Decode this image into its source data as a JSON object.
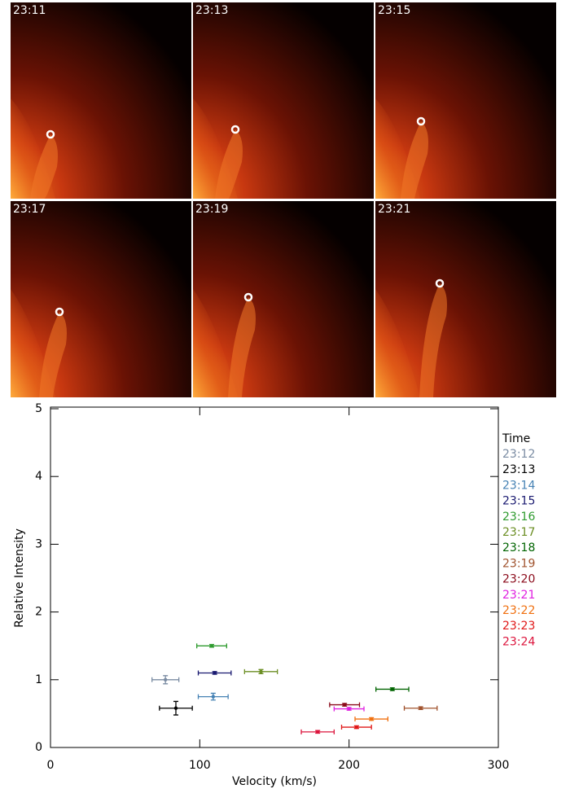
{
  "panels": [
    {
      "label": "23:11"
    },
    {
      "label": "23:13"
    },
    {
      "label": "23:15"
    },
    {
      "label": "23:17"
    },
    {
      "label": "23:19"
    },
    {
      "label": "23:21"
    }
  ],
  "chart_data": {
    "type": "scatter",
    "xlabel": "Velocity (km/s)",
    "ylabel": "Relative Intensity",
    "xlim": [
      0,
      300
    ],
    "ylim": [
      0,
      5
    ],
    "xticks": [
      0,
      100,
      200,
      300
    ],
    "yticks": [
      0,
      1,
      2,
      3,
      4,
      5
    ],
    "legend_title": "Time",
    "legend": "right",
    "series": [
      {
        "name": "23:12",
        "color": "#7b8ca3",
        "x": [
          77
        ],
        "xerr": [
          9
        ],
        "values": [
          1.0
        ],
        "yerr": [
          0.06
        ]
      },
      {
        "name": "23:13",
        "color": "#000000",
        "x": [
          84
        ],
        "xerr": [
          11
        ],
        "values": [
          0.58
        ],
        "yerr": [
          0.1
        ]
      },
      {
        "name": "23:14",
        "color": "#4682b4",
        "x": [
          109
        ],
        "xerr": [
          10
        ],
        "values": [
          0.75
        ],
        "yerr": [
          0.05
        ]
      },
      {
        "name": "23:15",
        "color": "#191970",
        "x": [
          110
        ],
        "xerr": [
          11
        ],
        "values": [
          1.1
        ],
        "yerr": [
          0.02
        ]
      },
      {
        "name": "23:16",
        "color": "#2e9b2e",
        "x": [
          108
        ],
        "xerr": [
          10
        ],
        "values": [
          1.5
        ],
        "yerr": [
          0.02
        ]
      },
      {
        "name": "23:17",
        "color": "#6b8e23",
        "x": [
          141
        ],
        "xerr": [
          11
        ],
        "values": [
          1.12
        ],
        "yerr": [
          0.03
        ]
      },
      {
        "name": "23:18",
        "color": "#006400",
        "x": [
          229
        ],
        "xerr": [
          11
        ],
        "values": [
          0.86
        ],
        "yerr": [
          0.02
        ]
      },
      {
        "name": "23:19",
        "color": "#a0522d",
        "x": [
          248
        ],
        "xerr": [
          11
        ],
        "values": [
          0.58
        ],
        "yerr": [
          0.02
        ]
      },
      {
        "name": "23:20",
        "color": "#8b0a1a",
        "x": [
          197
        ],
        "xerr": [
          10
        ],
        "values": [
          0.63
        ],
        "yerr": [
          0.02
        ]
      },
      {
        "name": "23:21",
        "color": "#e020e0",
        "x": [
          200
        ],
        "xerr": [
          10
        ],
        "values": [
          0.57
        ],
        "yerr": [
          0.02
        ]
      },
      {
        "name": "23:22",
        "color": "#f07010",
        "x": [
          215
        ],
        "xerr": [
          11
        ],
        "values": [
          0.42
        ],
        "yerr": [
          0.02
        ]
      },
      {
        "name": "23:23",
        "color": "#e01818",
        "x": [
          205
        ],
        "xerr": [
          10
        ],
        "values": [
          0.3
        ],
        "yerr": [
          0.02
        ]
      },
      {
        "name": "23:24",
        "color": "#dc143c",
        "x": [
          179
        ],
        "xerr": [
          11
        ],
        "values": [
          0.23
        ],
        "yerr": [
          0.02
        ]
      }
    ]
  }
}
